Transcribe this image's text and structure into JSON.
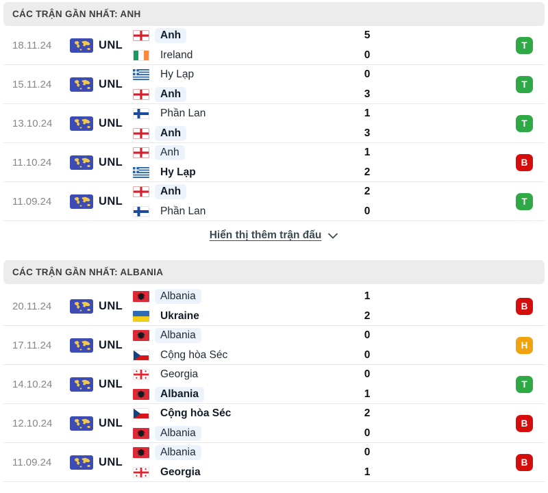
{
  "colors": {
    "header_bg": "#ececec",
    "highlight_bg": "#ecf3fc",
    "win": "#2fa846",
    "loss": "#d40d0d",
    "draw": "#f0a30f",
    "unl_badge_bg": "#3c4cb4",
    "unl_map_yellow": "#f2c94c",
    "link_text": "#3b4a52"
  },
  "sections": [
    {
      "id": "anh",
      "title": "CÁC TRẬN GẦN NHẤT: ANH",
      "show_more": {
        "label": "Hiển thị thêm trận đấu",
        "icon": "chevron-down"
      },
      "matches": [
        {
          "date": "18.11.24",
          "competition": "UNL",
          "teams": [
            {
              "name": "Anh",
              "flag": "england",
              "score": "5",
              "bold": true,
              "highlight": true
            },
            {
              "name": "Ireland",
              "flag": "ireland",
              "score": "0",
              "bold": false,
              "highlight": false
            }
          ],
          "result": {
            "label": "T",
            "type": "win"
          }
        },
        {
          "date": "15.11.24",
          "competition": "UNL",
          "teams": [
            {
              "name": "Hy Lạp",
              "flag": "greece",
              "score": "0",
              "bold": false,
              "highlight": false
            },
            {
              "name": "Anh",
              "flag": "england",
              "score": "3",
              "bold": true,
              "highlight": true
            }
          ],
          "result": {
            "label": "T",
            "type": "win"
          }
        },
        {
          "date": "13.10.24",
          "competition": "UNL",
          "teams": [
            {
              "name": "Phần Lan",
              "flag": "finland",
              "score": "1",
              "bold": false,
              "highlight": false
            },
            {
              "name": "Anh",
              "flag": "england",
              "score": "3",
              "bold": true,
              "highlight": true
            }
          ],
          "result": {
            "label": "T",
            "type": "win"
          }
        },
        {
          "date": "11.10.24",
          "competition": "UNL",
          "teams": [
            {
              "name": "Anh",
              "flag": "england",
              "score": "1",
              "bold": false,
              "highlight": true
            },
            {
              "name": "Hy Lạp",
              "flag": "greece",
              "score": "2",
              "bold": true,
              "highlight": false
            }
          ],
          "result": {
            "label": "B",
            "type": "loss"
          }
        },
        {
          "date": "11.09.24",
          "competition": "UNL",
          "teams": [
            {
              "name": "Anh",
              "flag": "england",
              "score": "2",
              "bold": true,
              "highlight": true
            },
            {
              "name": "Phần Lan",
              "flag": "finland",
              "score": "0",
              "bold": false,
              "highlight": false
            }
          ],
          "result": {
            "label": "T",
            "type": "win"
          }
        }
      ]
    },
    {
      "id": "albania",
      "title": "CÁC TRẬN GẦN NHẤT: ALBANIA",
      "matches": [
        {
          "date": "20.11.24",
          "competition": "UNL",
          "teams": [
            {
              "name": "Albania",
              "flag": "albania",
              "score": "1",
              "bold": false,
              "highlight": true
            },
            {
              "name": "Ukraine",
              "flag": "ukraine",
              "score": "2",
              "bold": true,
              "highlight": false
            }
          ],
          "result": {
            "label": "B",
            "type": "loss"
          }
        },
        {
          "date": "17.11.24",
          "competition": "UNL",
          "teams": [
            {
              "name": "Albania",
              "flag": "albania",
              "score": "0",
              "bold": false,
              "highlight": true
            },
            {
              "name": "Cộng hòa Séc",
              "flag": "czechia",
              "score": "0",
              "bold": false,
              "highlight": false
            }
          ],
          "result": {
            "label": "H",
            "type": "draw"
          }
        },
        {
          "date": "14.10.24",
          "competition": "UNL",
          "teams": [
            {
              "name": "Georgia",
              "flag": "georgia",
              "score": "0",
              "bold": false,
              "highlight": false
            },
            {
              "name": "Albania",
              "flag": "albania",
              "score": "1",
              "bold": true,
              "highlight": true
            }
          ],
          "result": {
            "label": "T",
            "type": "win"
          }
        },
        {
          "date": "12.10.24",
          "competition": "UNL",
          "teams": [
            {
              "name": "Cộng hòa Séc",
              "flag": "czechia",
              "score": "2",
              "bold": true,
              "highlight": false
            },
            {
              "name": "Albania",
              "flag": "albania",
              "score": "0",
              "bold": false,
              "highlight": true
            }
          ],
          "result": {
            "label": "B",
            "type": "loss"
          }
        },
        {
          "date": "11.09.24",
          "competition": "UNL",
          "teams": [
            {
              "name": "Albania",
              "flag": "albania",
              "score": "0",
              "bold": false,
              "highlight": true
            },
            {
              "name": "Georgia",
              "flag": "georgia",
              "score": "1",
              "bold": true,
              "highlight": false
            }
          ],
          "result": {
            "label": "B",
            "type": "loss"
          }
        }
      ]
    }
  ]
}
